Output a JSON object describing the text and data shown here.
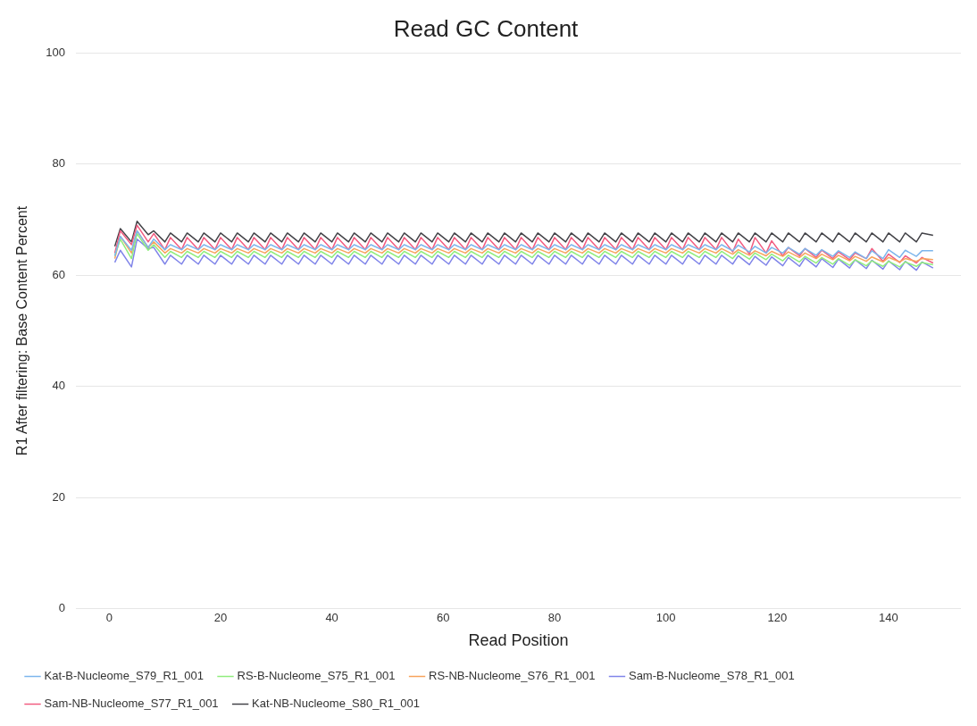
{
  "chart_data": {
    "type": "line",
    "title": "Read GC Content",
    "xlabel": "Read Position",
    "ylabel": "R1 After filtering: Base Content Percent",
    "x": [
      1,
      2,
      4,
      5,
      7,
      8,
      10,
      11,
      13,
      14,
      16,
      17,
      19,
      20,
      22,
      23,
      25,
      26,
      28,
      29,
      31,
      32,
      34,
      35,
      37,
      38,
      40,
      41,
      43,
      44,
      46,
      47,
      49,
      50,
      52,
      53,
      55,
      56,
      58,
      59,
      61,
      62,
      64,
      65,
      67,
      68,
      70,
      71,
      73,
      74,
      76,
      77,
      79,
      80,
      82,
      83,
      85,
      86,
      88,
      89,
      91,
      92,
      94,
      95,
      97,
      98,
      100,
      101,
      103,
      104,
      106,
      107,
      109,
      110,
      112,
      113,
      115,
      116,
      118,
      119,
      121,
      122,
      124,
      125,
      127,
      128,
      130,
      131,
      133,
      134,
      136,
      137,
      139,
      140,
      142,
      143,
      145,
      146,
      148
    ],
    "xlim": [
      -6,
      153
    ],
    "xticks": [
      0,
      20,
      40,
      60,
      80,
      100,
      120,
      140
    ],
    "ylim": [
      0,
      100
    ],
    "yticks": [
      0,
      20,
      40,
      60,
      80,
      100
    ],
    "grid": "y",
    "legend": "bottom",
    "marker": "none",
    "line_style": "solid",
    "series": [
      {
        "name": "Kat-B-Nucleome_S79_R1_001",
        "color": "#7cb5ec",
        "values": [
          63.5,
          67.0,
          64.5,
          68.0,
          65.0,
          66.5,
          64.6,
          65.5,
          64.6,
          65.5,
          64.6,
          65.5,
          64.6,
          65.5,
          64.6,
          65.5,
          64.6,
          65.5,
          64.6,
          65.5,
          64.6,
          65.5,
          64.6,
          65.5,
          64.6,
          65.5,
          64.6,
          65.5,
          64.6,
          65.5,
          64.6,
          65.5,
          64.6,
          65.5,
          64.6,
          65.5,
          64.6,
          65.5,
          64.6,
          65.5,
          64.6,
          65.5,
          64.6,
          65.5,
          64.6,
          65.5,
          64.6,
          65.5,
          64.6,
          65.5,
          64.6,
          65.5,
          64.6,
          65.5,
          64.6,
          65.5,
          64.6,
          65.5,
          64.6,
          65.5,
          64.6,
          65.5,
          64.6,
          65.5,
          64.6,
          65.5,
          64.6,
          65.5,
          64.6,
          65.5,
          64.6,
          65.5,
          64.6,
          65.5,
          64.4,
          65.4,
          64.2,
          65.2,
          64.0,
          65.0,
          64.0,
          65.0,
          63.8,
          64.8,
          63.6,
          64.6,
          63.4,
          64.4,
          63.2,
          64.2,
          63.0,
          64.4,
          63.0,
          64.6,
          63.2,
          64.5,
          63.4,
          64.4,
          64.4
        ]
      },
      {
        "name": "RS-B-Nucleome_S75_R1_001",
        "color": "#90ed7d",
        "values": [
          63.5,
          66.5,
          63.0,
          67.5,
          64.5,
          65.5,
          63.2,
          64.3,
          63.2,
          64.3,
          63.2,
          64.3,
          63.2,
          64.3,
          63.2,
          64.3,
          63.2,
          64.3,
          63.2,
          64.3,
          63.2,
          64.3,
          63.2,
          64.3,
          63.2,
          64.3,
          63.2,
          64.3,
          63.2,
          64.3,
          63.2,
          64.3,
          63.2,
          64.3,
          63.2,
          64.3,
          63.2,
          64.3,
          63.2,
          64.3,
          63.2,
          64.3,
          63.2,
          64.3,
          63.2,
          64.3,
          63.2,
          64.3,
          63.2,
          64.3,
          63.2,
          64.3,
          63.2,
          64.3,
          63.2,
          64.3,
          63.2,
          64.3,
          63.2,
          64.3,
          63.2,
          64.3,
          63.2,
          64.3,
          63.2,
          64.3,
          63.2,
          64.3,
          63.2,
          64.3,
          63.2,
          64.3,
          63.2,
          64.3,
          63.0,
          64.2,
          62.9,
          64.0,
          62.8,
          63.8,
          62.6,
          63.6,
          62.4,
          63.4,
          62.2,
          63.2,
          62.0,
          63.0,
          61.8,
          62.8,
          61.7,
          62.6,
          61.6,
          62.5,
          61.5,
          62.4,
          61.6,
          62.3,
          61.9
        ]
      },
      {
        "name": "RS-NB-Nucleome_S76_R1_001",
        "color": "#f7a35c",
        "values": [
          63.0,
          67.0,
          64.0,
          68.0,
          65.0,
          66.0,
          64.0,
          64.8,
          64.0,
          64.8,
          64.0,
          64.8,
          64.0,
          64.8,
          64.0,
          64.8,
          64.0,
          64.8,
          64.0,
          64.8,
          64.0,
          64.8,
          64.0,
          64.8,
          64.0,
          64.8,
          64.0,
          64.8,
          64.0,
          64.8,
          64.0,
          64.8,
          64.0,
          64.8,
          64.0,
          64.8,
          64.0,
          64.8,
          64.0,
          64.8,
          64.0,
          64.8,
          64.0,
          64.8,
          64.0,
          64.8,
          64.0,
          64.8,
          64.0,
          64.8,
          64.0,
          64.8,
          64.0,
          64.8,
          64.0,
          64.8,
          64.0,
          64.8,
          64.0,
          64.8,
          64.0,
          64.8,
          64.0,
          64.8,
          64.0,
          64.8,
          64.0,
          64.8,
          64.0,
          64.8,
          64.0,
          64.8,
          64.0,
          64.8,
          63.8,
          64.6,
          63.6,
          64.4,
          63.5,
          64.3,
          63.4,
          64.2,
          63.2,
          64.0,
          63.0,
          63.8,
          62.8,
          63.6,
          62.6,
          63.4,
          62.5,
          63.3,
          62.4,
          63.2,
          62.4,
          63.0,
          62.5,
          63.0,
          62.8
        ]
      },
      {
        "name": "Sam-B-Nucleome_S78_R1_001",
        "color": "#8085e9",
        "values": [
          62.3,
          64.5,
          61.5,
          66.5,
          64.8,
          65.0,
          62.0,
          63.6,
          62.0,
          63.6,
          62.0,
          63.6,
          62.0,
          63.6,
          62.0,
          63.6,
          62.0,
          63.6,
          62.0,
          63.6,
          62.0,
          63.6,
          62.0,
          63.6,
          62.0,
          63.6,
          62.0,
          63.6,
          62.0,
          63.6,
          62.0,
          63.6,
          62.0,
          63.6,
          62.0,
          63.6,
          62.0,
          63.6,
          62.0,
          63.6,
          62.0,
          63.6,
          62.0,
          63.6,
          62.0,
          63.6,
          62.0,
          63.6,
          62.0,
          63.6,
          62.0,
          63.6,
          62.0,
          63.6,
          62.0,
          63.6,
          62.0,
          63.6,
          62.0,
          63.6,
          62.0,
          63.6,
          62.0,
          63.6,
          62.0,
          63.6,
          62.0,
          63.6,
          62.0,
          63.6,
          62.0,
          63.6,
          62.0,
          63.6,
          62.0,
          63.5,
          61.9,
          63.4,
          61.8,
          63.3,
          61.7,
          63.2,
          61.6,
          63.1,
          61.5,
          63.0,
          61.4,
          62.9,
          61.3,
          62.8,
          61.2,
          62.7,
          61.1,
          62.6,
          61.0,
          62.5,
          60.9,
          62.4,
          61.3
        ]
      },
      {
        "name": "Sam-NB-Nucleome_S77_R1_001",
        "color": "#f15c80",
        "values": [
          64.0,
          68.0,
          65.5,
          69.0,
          66.0,
          67.5,
          64.6,
          66.8,
          64.6,
          66.8,
          64.6,
          66.8,
          64.6,
          66.8,
          64.6,
          66.8,
          64.6,
          66.8,
          64.6,
          66.8,
          64.6,
          66.8,
          64.6,
          66.8,
          64.6,
          66.8,
          64.6,
          66.8,
          64.6,
          66.8,
          64.6,
          66.8,
          64.6,
          66.8,
          64.6,
          66.8,
          64.6,
          66.8,
          64.6,
          66.8,
          64.6,
          66.8,
          64.6,
          66.8,
          64.6,
          66.8,
          64.6,
          66.8,
          64.6,
          66.8,
          64.6,
          66.8,
          64.6,
          66.8,
          64.6,
          66.8,
          64.6,
          66.8,
          64.6,
          66.8,
          64.6,
          66.8,
          64.6,
          66.8,
          64.6,
          66.8,
          64.6,
          66.8,
          64.6,
          66.8,
          64.6,
          66.8,
          64.6,
          66.8,
          64.2,
          66.5,
          63.8,
          66.8,
          64.0,
          66.2,
          63.5,
          65.0,
          63.5,
          64.8,
          63.2,
          64.5,
          63.0,
          64.2,
          62.8,
          64.0,
          63.0,
          64.8,
          62.5,
          63.8,
          62.3,
          63.5,
          62.2,
          63.2,
          62.2
        ]
      },
      {
        "name": "Kat-NB-Nucleome_S80_R1_001",
        "color": "#434348",
        "values": [
          65.2,
          68.4,
          66.0,
          69.7,
          67.3,
          68.0,
          66.0,
          67.6,
          66.0,
          67.6,
          66.0,
          67.6,
          66.0,
          67.6,
          66.0,
          67.6,
          66.0,
          67.6,
          66.0,
          67.6,
          66.0,
          67.6,
          66.0,
          67.6,
          66.0,
          67.6,
          66.0,
          67.6,
          66.0,
          67.6,
          66.0,
          67.6,
          66.0,
          67.6,
          66.0,
          67.6,
          66.0,
          67.6,
          66.0,
          67.6,
          66.0,
          67.6,
          66.0,
          67.6,
          66.0,
          67.6,
          66.0,
          67.6,
          66.0,
          67.6,
          66.0,
          67.6,
          66.0,
          67.6,
          66.0,
          67.6,
          66.0,
          67.6,
          66.0,
          67.6,
          66.0,
          67.6,
          66.0,
          67.6,
          66.0,
          67.6,
          66.0,
          67.6,
          66.0,
          67.6,
          66.0,
          67.6,
          66.0,
          67.6,
          66.0,
          67.6,
          66.0,
          67.6,
          66.0,
          67.6,
          66.0,
          67.6,
          66.0,
          67.6,
          66.0,
          67.6,
          66.0,
          67.6,
          66.0,
          67.6,
          66.0,
          67.6,
          66.0,
          67.6,
          66.0,
          67.6,
          66.0,
          67.6,
          67.2
        ]
      }
    ]
  }
}
